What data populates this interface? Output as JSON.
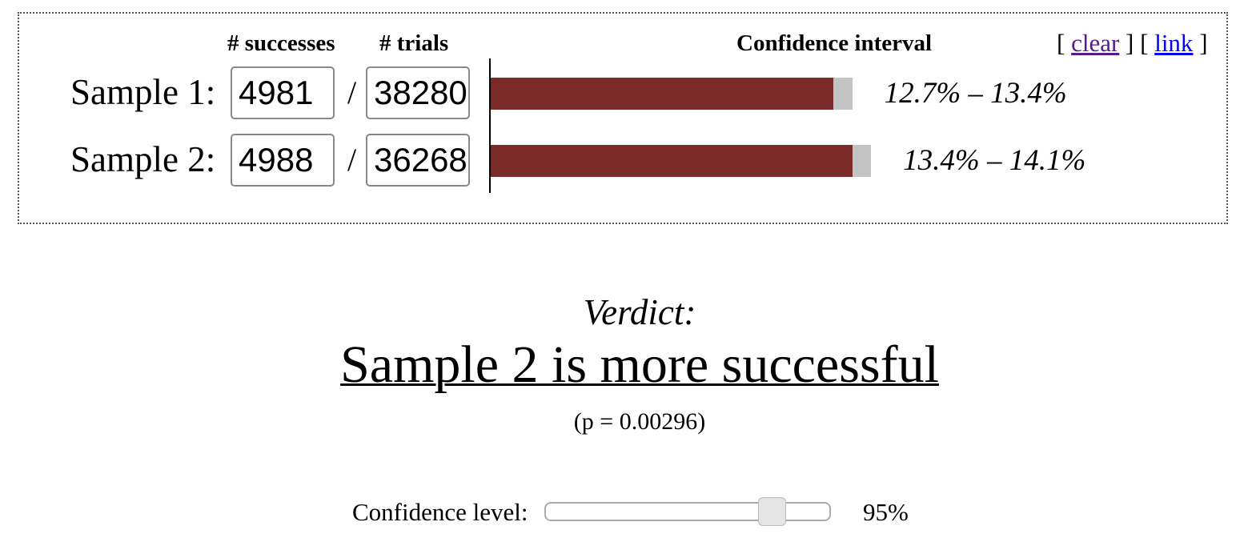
{
  "header": {
    "successes": "# successes",
    "trials": "# trials",
    "interval": "Confidence interval",
    "open1": "[",
    "clear": "clear",
    "mid": "] [",
    "link": "link",
    "close": "]"
  },
  "samples": [
    {
      "label": "Sample 1:",
      "successes": "4981",
      "slash": "/",
      "trials": "38280",
      "ci_low": 12.7,
      "ci_high": 13.4,
      "ci_label": "12.7% – 13.4%"
    },
    {
      "label": "Sample 2:",
      "successes": "4988",
      "slash": "/",
      "trials": "36268",
      "ci_low": 13.4,
      "ci_high": 14.1,
      "ci_label": "13.4% – 14.1%"
    }
  ],
  "verdict": {
    "heading": "Verdict:",
    "result": "Sample 2 is more successful",
    "p": "(p = 0.00296)"
  },
  "confidence": {
    "label": "Confidence level:",
    "value": "95%"
  }
}
